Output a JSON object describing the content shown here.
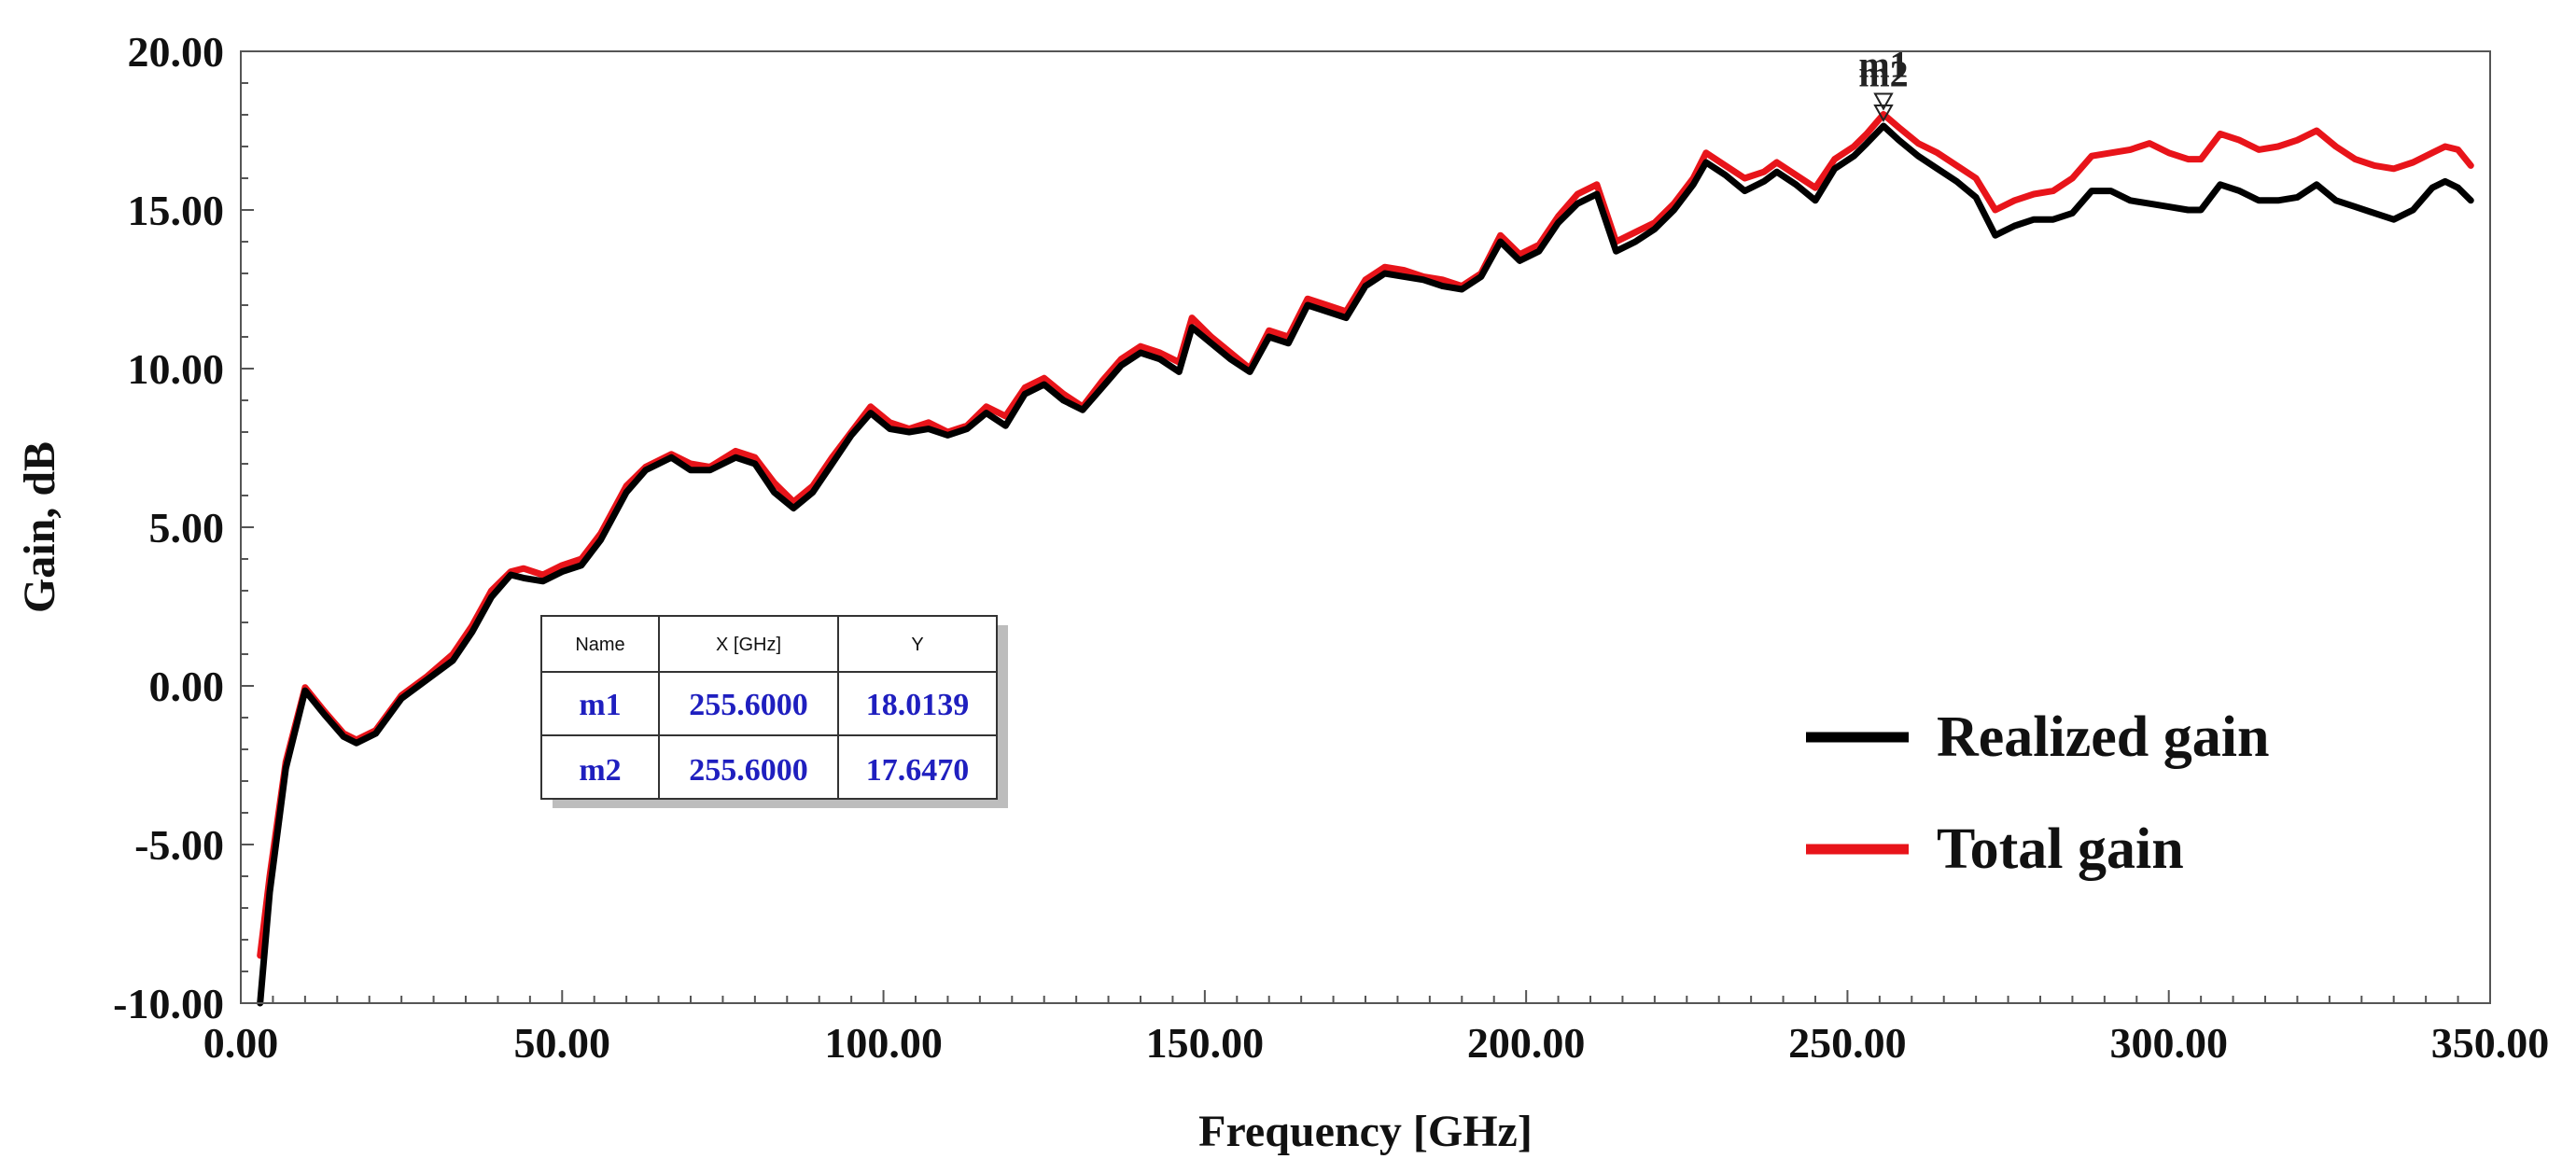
{
  "chart_data": {
    "type": "line",
    "xlabel": "Frequency [GHz]",
    "ylabel": "Gain, dB",
    "xlim": [
      0,
      350
    ],
    "ylim": [
      -10,
      20
    ],
    "grid": false,
    "x_ticks": [
      0,
      50,
      100,
      150,
      200,
      250,
      300,
      350
    ],
    "x_tick_labels": [
      "0.00",
      "50.00",
      "100.00",
      "150.00",
      "200.00",
      "250.00",
      "300.00",
      "350.00"
    ],
    "y_ticks": [
      20,
      15,
      10,
      5,
      0,
      -5,
      -10
    ],
    "y_tick_labels": [
      "20.00",
      "15.00",
      "10.00",
      "5.00",
      "0.00",
      "-5.00",
      "-10.00"
    ],
    "legend_position": "right",
    "series": [
      {
        "name": "Total gain",
        "color": "#e8141a",
        "points": [
          [
            3,
            -8.5
          ],
          [
            4.5,
            -6
          ],
          [
            7,
            -2.4
          ],
          [
            10,
            -0.05
          ],
          [
            13,
            -0.8
          ],
          [
            16,
            -1.5
          ],
          [
            18,
            -1.7
          ],
          [
            21,
            -1.4
          ],
          [
            25,
            -0.3
          ],
          [
            29,
            0.3
          ],
          [
            33,
            1.0
          ],
          [
            36,
            1.9
          ],
          [
            39,
            3.0
          ],
          [
            42,
            3.6
          ],
          [
            44,
            3.7
          ],
          [
            47,
            3.5
          ],
          [
            50,
            3.8
          ],
          [
            53,
            4.0
          ],
          [
            56,
            4.8
          ],
          [
            60,
            6.3
          ],
          [
            63,
            6.9
          ],
          [
            67,
            7.3
          ],
          [
            70,
            7.0
          ],
          [
            73,
            6.9
          ],
          [
            77,
            7.4
          ],
          [
            80,
            7.2
          ],
          [
            83,
            6.4
          ],
          [
            86,
            5.8
          ],
          [
            89,
            6.3
          ],
          [
            92,
            7.2
          ],
          [
            95,
            8.0
          ],
          [
            98,
            8.8
          ],
          [
            101,
            8.3
          ],
          [
            104,
            8.1
          ],
          [
            107,
            8.3
          ],
          [
            110,
            8.0
          ],
          [
            113,
            8.2
          ],
          [
            116,
            8.8
          ],
          [
            119,
            8.5
          ],
          [
            122,
            9.4
          ],
          [
            125,
            9.7
          ],
          [
            128,
            9.2
          ],
          [
            131,
            8.8
          ],
          [
            134,
            9.6
          ],
          [
            137,
            10.3
          ],
          [
            140,
            10.7
          ],
          [
            143,
            10.5
          ],
          [
            146,
            10.2
          ],
          [
            148,
            11.6
          ],
          [
            151,
            11.0
          ],
          [
            154,
            10.5
          ],
          [
            157,
            10.0
          ],
          [
            160,
            11.2
          ],
          [
            163,
            11.0
          ],
          [
            166,
            12.2
          ],
          [
            169,
            12.0
          ],
          [
            172,
            11.8
          ],
          [
            175,
            12.8
          ],
          [
            178,
            13.2
          ],
          [
            181,
            13.1
          ],
          [
            184,
            12.9
          ],
          [
            187,
            12.8
          ],
          [
            190,
            12.6
          ],
          [
            193,
            13.0
          ],
          [
            196,
            14.2
          ],
          [
            199,
            13.6
          ],
          [
            202,
            13.9
          ],
          [
            205,
            14.8
          ],
          [
            208,
            15.5
          ],
          [
            211,
            15.8
          ],
          [
            214,
            14.0
          ],
          [
            217,
            14.3
          ],
          [
            220,
            14.6
          ],
          [
            223,
            15.2
          ],
          [
            226,
            16.0
          ],
          [
            228,
            16.8
          ],
          [
            231,
            16.4
          ],
          [
            234,
            16.0
          ],
          [
            237,
            16.2
          ],
          [
            239,
            16.5
          ],
          [
            242,
            16.1
          ],
          [
            245,
            15.7
          ],
          [
            248,
            16.6
          ],
          [
            251,
            17.0
          ],
          [
            253,
            17.4
          ],
          [
            255.6,
            18.0139
          ],
          [
            258,
            17.6
          ],
          [
            261,
            17.1
          ],
          [
            264,
            16.8
          ],
          [
            267,
            16.4
          ],
          [
            270,
            16.0
          ],
          [
            273,
            15.0
          ],
          [
            276,
            15.3
          ],
          [
            279,
            15.5
          ],
          [
            282,
            15.6
          ],
          [
            285,
            16.0
          ],
          [
            288,
            16.7
          ],
          [
            291,
            16.8
          ],
          [
            294,
            16.9
          ],
          [
            297,
            17.1
          ],
          [
            300,
            16.8
          ],
          [
            303,
            16.6
          ],
          [
            305,
            16.6
          ],
          [
            308,
            17.4
          ],
          [
            311,
            17.2
          ],
          [
            314,
            16.9
          ],
          [
            317,
            17.0
          ],
          [
            320,
            17.2
          ],
          [
            323,
            17.5
          ],
          [
            326,
            17.0
          ],
          [
            329,
            16.6
          ],
          [
            332,
            16.4
          ],
          [
            335,
            16.3
          ],
          [
            338,
            16.5
          ],
          [
            341,
            16.8
          ],
          [
            343,
            17.0
          ],
          [
            345,
            16.9
          ],
          [
            347,
            16.4
          ]
        ]
      },
      {
        "name": "Realized gain",
        "color": "#000000",
        "points": [
          [
            3,
            -10
          ],
          [
            4.5,
            -6.5
          ],
          [
            7,
            -2.6
          ],
          [
            10,
            -0.15
          ],
          [
            13,
            -0.9
          ],
          [
            16,
            -1.6
          ],
          [
            18,
            -1.8
          ],
          [
            21,
            -1.5
          ],
          [
            25,
            -0.4
          ],
          [
            29,
            0.2
          ],
          [
            33,
            0.8
          ],
          [
            36,
            1.7
          ],
          [
            39,
            2.8
          ],
          [
            42,
            3.5
          ],
          [
            44,
            3.4
          ],
          [
            47,
            3.3
          ],
          [
            50,
            3.6
          ],
          [
            53,
            3.8
          ],
          [
            56,
            4.6
          ],
          [
            60,
            6.1
          ],
          [
            63,
            6.8
          ],
          [
            67,
            7.2
          ],
          [
            70,
            6.8
          ],
          [
            73,
            6.8
          ],
          [
            77,
            7.2
          ],
          [
            80,
            7.0
          ],
          [
            83,
            6.1
          ],
          [
            86,
            5.6
          ],
          [
            89,
            6.1
          ],
          [
            92,
            7.0
          ],
          [
            95,
            7.9
          ],
          [
            98,
            8.6
          ],
          [
            101,
            8.1
          ],
          [
            104,
            8.0
          ],
          [
            107,
            8.1
          ],
          [
            110,
            7.9
          ],
          [
            113,
            8.1
          ],
          [
            116,
            8.6
          ],
          [
            119,
            8.2
          ],
          [
            122,
            9.2
          ],
          [
            125,
            9.5
          ],
          [
            128,
            9.0
          ],
          [
            131,
            8.7
          ],
          [
            134,
            9.4
          ],
          [
            137,
            10.1
          ],
          [
            140,
            10.5
          ],
          [
            143,
            10.3
          ],
          [
            146,
            9.9
          ],
          [
            148,
            11.3
          ],
          [
            151,
            10.8
          ],
          [
            154,
            10.3
          ],
          [
            157,
            9.9
          ],
          [
            160,
            11.0
          ],
          [
            163,
            10.8
          ],
          [
            166,
            12.0
          ],
          [
            169,
            11.8
          ],
          [
            172,
            11.6
          ],
          [
            175,
            12.6
          ],
          [
            178,
            13.0
          ],
          [
            181,
            12.9
          ],
          [
            184,
            12.8
          ],
          [
            187,
            12.6
          ],
          [
            190,
            12.5
          ],
          [
            193,
            12.9
          ],
          [
            196,
            14.0
          ],
          [
            199,
            13.4
          ],
          [
            202,
            13.7
          ],
          [
            205,
            14.6
          ],
          [
            208,
            15.2
          ],
          [
            211,
            15.5
          ],
          [
            214,
            13.7
          ],
          [
            217,
            14.0
          ],
          [
            220,
            14.4
          ],
          [
            223,
            15.0
          ],
          [
            226,
            15.8
          ],
          [
            228,
            16.5
          ],
          [
            231,
            16.1
          ],
          [
            234,
            15.6
          ],
          [
            237,
            15.9
          ],
          [
            239,
            16.2
          ],
          [
            242,
            15.8
          ],
          [
            245,
            15.3
          ],
          [
            248,
            16.3
          ],
          [
            251,
            16.7
          ],
          [
            253,
            17.1
          ],
          [
            255.6,
            17.647
          ],
          [
            258,
            17.2
          ],
          [
            261,
            16.7
          ],
          [
            264,
            16.3
          ],
          [
            267,
            15.9
          ],
          [
            270,
            15.4
          ],
          [
            273,
            14.2
          ],
          [
            276,
            14.5
          ],
          [
            279,
            14.7
          ],
          [
            282,
            14.7
          ],
          [
            285,
            14.9
          ],
          [
            288,
            15.6
          ],
          [
            291,
            15.6
          ],
          [
            294,
            15.3
          ],
          [
            297,
            15.2
          ],
          [
            300,
            15.1
          ],
          [
            303,
            15.0
          ],
          [
            305,
            15.0
          ],
          [
            308,
            15.8
          ],
          [
            311,
            15.6
          ],
          [
            314,
            15.3
          ],
          [
            317,
            15.3
          ],
          [
            320,
            15.4
          ],
          [
            323,
            15.8
          ],
          [
            326,
            15.3
          ],
          [
            329,
            15.1
          ],
          [
            332,
            14.9
          ],
          [
            335,
            14.7
          ],
          [
            338,
            15.0
          ],
          [
            341,
            15.7
          ],
          [
            343,
            15.9
          ],
          [
            345,
            15.7
          ],
          [
            347,
            15.3
          ]
        ]
      }
    ],
    "markers": [
      {
        "name": "m1",
        "x": 255.6,
        "y": 18.0139,
        "series": "Total gain"
      },
      {
        "name": "m2",
        "x": 255.6,
        "y": 17.647,
        "series": "Realized gain"
      }
    ],
    "marker_table": {
      "headers": [
        "Name",
        "X [GHz]",
        "Y"
      ],
      "rows": [
        {
          "name": "m1",
          "x": "255.6000",
          "y": "18.0139"
        },
        {
          "name": "m2",
          "x": "255.6000",
          "y": "17.6470"
        }
      ],
      "text_color": "#1f1fbf"
    },
    "legend": [
      {
        "label": "Realized gain",
        "color": "#000000"
      },
      {
        "label": "Total gain",
        "color": "#e8141a"
      }
    ]
  }
}
